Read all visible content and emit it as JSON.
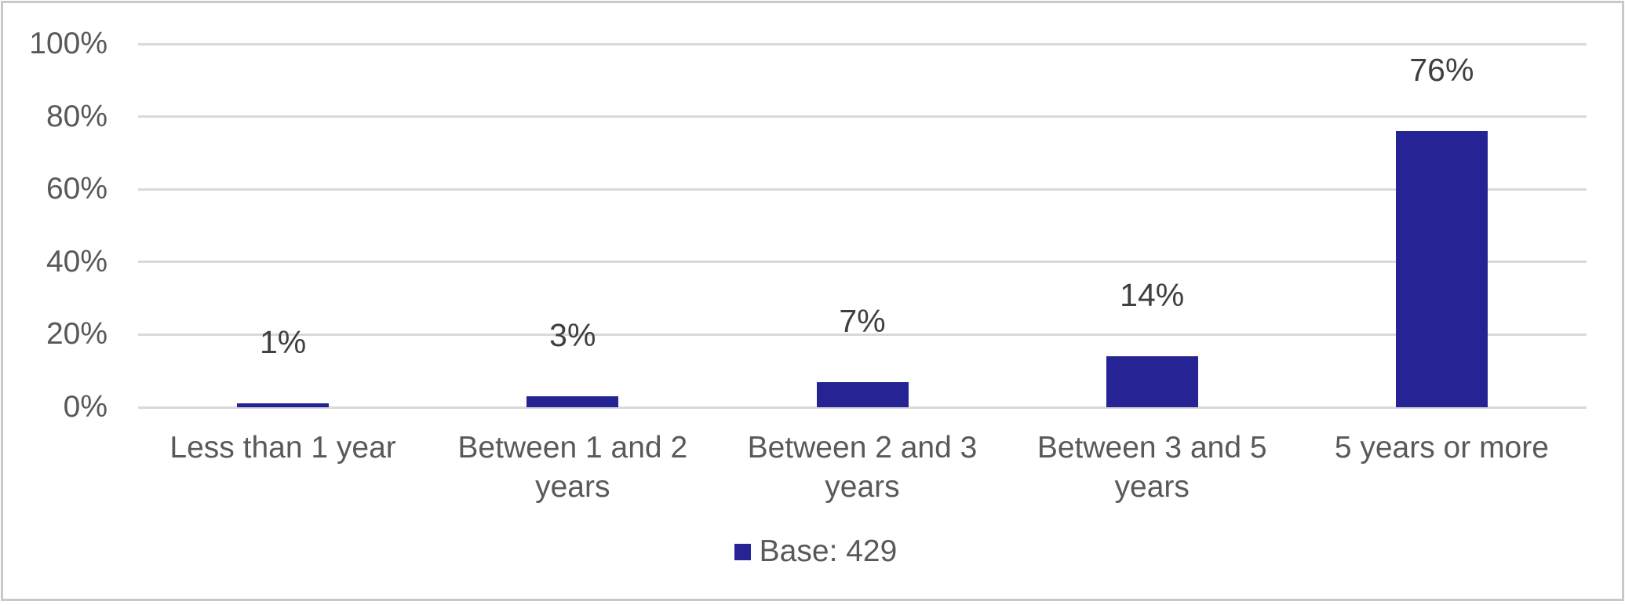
{
  "chart_data": {
    "type": "bar",
    "title": "",
    "categories": [
      "Less than 1 year",
      "Between 1 and 2 years",
      "Between 2 and 3 years",
      "Between 3 and 5 years",
      "5 years or more"
    ],
    "values": [
      1,
      3,
      7,
      14,
      76
    ],
    "value_labels": [
      "1%",
      "3%",
      "7%",
      "14%",
      "76%"
    ],
    "xlabel": "",
    "ylabel": "",
    "ylim": [
      0,
      100
    ],
    "y_tick_values": [
      0,
      20,
      40,
      60,
      80,
      100
    ],
    "y_tick_labels": [
      "0%",
      "20%",
      "40%",
      "60%",
      "80%",
      "100%"
    ],
    "grid": "horizontal-on",
    "legend": {
      "label": "Base: 429",
      "position": "bottom-center"
    },
    "colors": {
      "bar": "#262394",
      "gridline": "#D9D9D9",
      "axis_text": "#595959",
      "data_label_text": "#3F3F3F",
      "frame_border": "#C9C9C9",
      "background": "#FFFFFF"
    }
  }
}
